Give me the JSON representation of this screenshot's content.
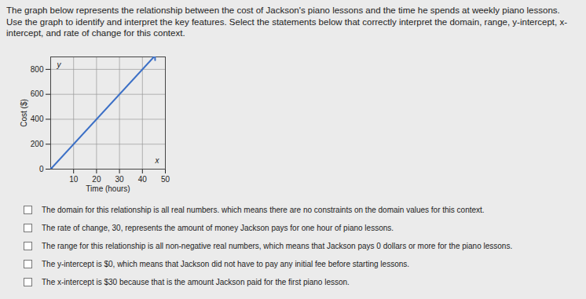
{
  "question": "The graph below represents the relationship between the cost of Jackson's piano lessons and the time he spends at weekly piano lessons.  Use the graph to identify and interpret the key features.  Select the statements below that correctly interpret the domain, range, y-intercept, x-intercept, and rate of change for this context.",
  "chart_data": {
    "type": "line",
    "x_label": "Time (hours)",
    "y_label": "Cost ($)",
    "annotations": [
      "y",
      "x"
    ],
    "x": [
      0,
      45
    ],
    "values": [
      0,
      900
    ],
    "xlim": [
      0,
      50
    ],
    "xticks": [
      10,
      20,
      30,
      40,
      50
    ],
    "ylim": [
      0,
      900
    ],
    "yticks": [
      0,
      200,
      400,
      600,
      800
    ],
    "grid": true,
    "color": "#3b6fc6",
    "marker": "arrow"
  },
  "options": [
    "The domain for this relationship is all real numbers.  which means there are no constraints on the domain values for this context.",
    "The rate of change, 30, represents the amount of money Jackson pays for one hour of piano lessons.",
    "The range for this relationship is all non-negative real numbers, which means that Jackson pays 0 dollars or more for the piano lessons.",
    "The y-intercept is $0, which means that Jackson did not have to pay any initial fee before starting lessons.",
    "The x-intercept is $30 because that is the amount Jackson paid for the first piano lesson."
  ]
}
